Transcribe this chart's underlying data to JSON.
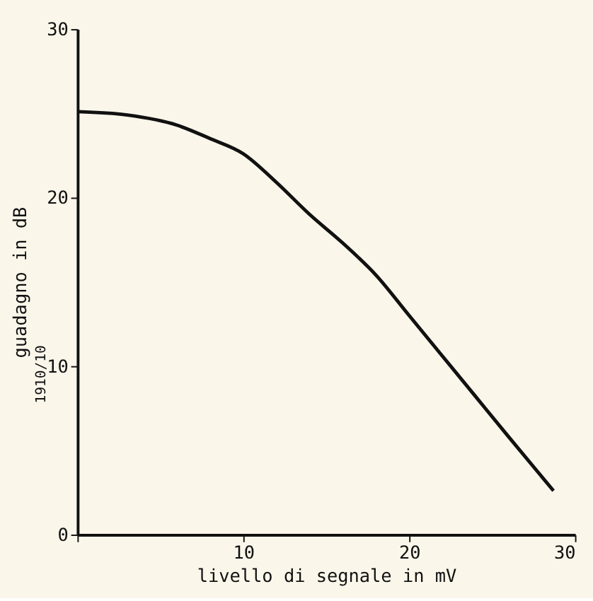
{
  "chart_data": {
    "type": "line",
    "xlabel": "livello di segnale in mV",
    "ylabel": "guadagno in dB",
    "annotations": [
      "1910/10"
    ],
    "xlim": [
      0,
      30
    ],
    "ylim": [
      0,
      30
    ],
    "xticks": [
      {
        "value": 0,
        "label": null
      },
      10,
      20,
      30
    ],
    "yticks": [
      0,
      10,
      20,
      30
    ],
    "grid": false,
    "marker": "none",
    "line_style": "solid",
    "series": [
      {
        "color": "#111111",
        "x": [
          0,
          3,
          6,
          8,
          10,
          12,
          14,
          16,
          18,
          20,
          22,
          24,
          26,
          28.7
        ],
        "values": [
          25.1,
          24.9,
          24.3,
          23.5,
          22.6,
          20.9,
          19.0,
          17.3,
          15.4,
          13.0,
          10.6,
          8.2,
          5.8,
          2.6
        ]
      }
    ]
  }
}
